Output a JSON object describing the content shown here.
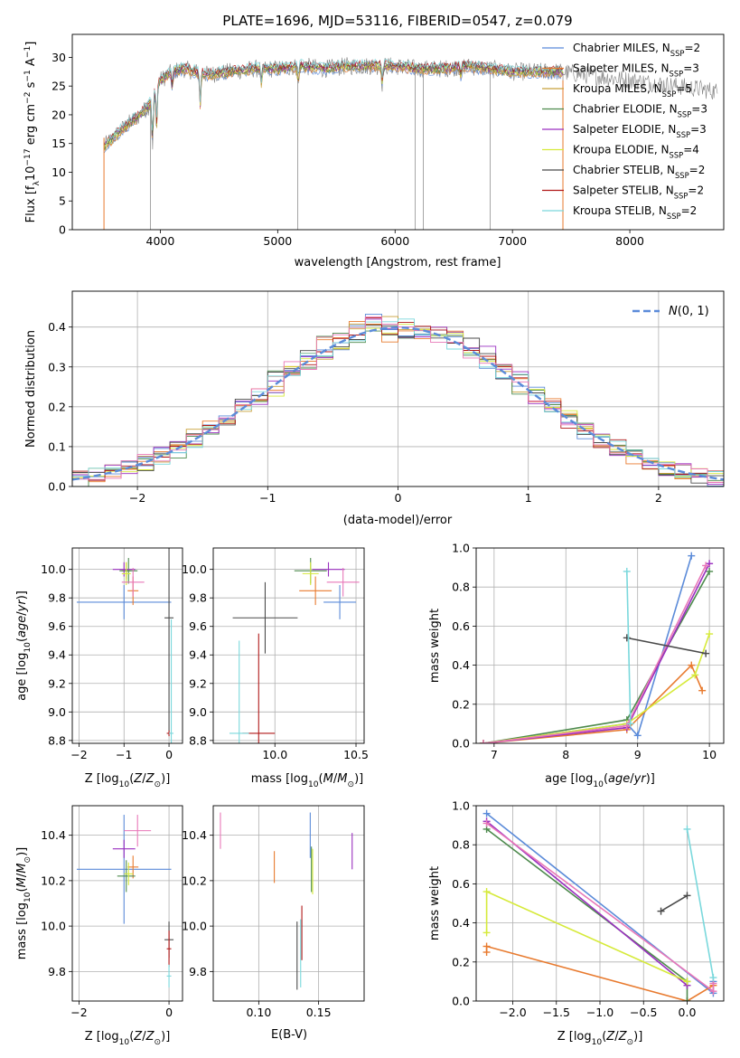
{
  "figure": {
    "title": "PLATE=1696, MJD=53116, FIBERID=0547, z=0.079"
  },
  "series_colors": {
    "Chabrier MILES": "#5b8bd9",
    "Salpeter MILES": "#e87a2e",
    "Kroupa MILES": "#c8a03a",
    "Chabrier ELODIE": "#4d8a4d",
    "Salpeter ELODIE": "#9a2fc0",
    "Kroupa ELODIE": "#d6ea3a",
    "Chabrier STELIB": "#4a4a4a",
    "Salpeter STELIB": "#b01818",
    "Kroupa STELIB": "#7ad8dc",
    "data": "#808080",
    "gaussian": "#5b8bd9",
    "pink": "#e877b8"
  },
  "chart_data": [
    {
      "id": "spectrum",
      "type": "line",
      "title": "PLATE=1696, MJD=53116, FIBERID=0547, z=0.079",
      "xlabel": "wavelength [Angstrom, rest frame]",
      "ylabel": "Flux [f_λ10^-17 erg cm^-2 s^-1 A^-1]",
      "xlim": [
        3250,
        8800
      ],
      "ylim": [
        0,
        34
      ],
      "xticks": [
        4000,
        5000,
        6000,
        7000,
        8000
      ],
      "yticks": [
        0,
        5,
        10,
        15,
        20,
        25,
        30
      ],
      "grid": false,
      "legend_position": "right",
      "legend": [
        {
          "name": "Chabrier MILES",
          "sub": "2"
        },
        {
          "name": "Salpeter MILES",
          "sub": "3"
        },
        {
          "name": "Kroupa MILES",
          "sub": "5"
        },
        {
          "name": "Chabrier ELODIE",
          "sub": "3"
        },
        {
          "name": "Salpeter ELODIE",
          "sub": "3"
        },
        {
          "name": "Kroupa ELODIE",
          "sub": "4"
        },
        {
          "name": "Chabrier STELIB",
          "sub": "2"
        },
        {
          "name": "Salpeter STELIB",
          "sub": "2"
        },
        {
          "name": "Kroupa STELIB",
          "sub": "2"
        }
      ],
      "continuum": {
        "x": [
          3520,
          3600,
          3700,
          3800,
          3900,
          4000,
          4100,
          4200,
          4300,
          4400,
          4600,
          4800,
          5000,
          5200,
          5400,
          5600,
          5800,
          6000,
          6200,
          6400,
          6600,
          6800,
          7000,
          7200,
          7400,
          7600,
          7800,
          8000,
          8200,
          8400,
          8600,
          8750
        ],
        "y": [
          14.5,
          16,
          18,
          19.5,
          21.5,
          26,
          27.5,
          28,
          27.5,
          27,
          27.5,
          28,
          28,
          28.5,
          28,
          28.5,
          28.5,
          28.5,
          28,
          28,
          28.5,
          28,
          27.5,
          27.5,
          27.5,
          27,
          26.5,
          26,
          25.5,
          25,
          24.5,
          24
        ]
      },
      "model_range": [
        3520,
        7430
      ]
    },
    {
      "id": "residuals",
      "type": "bar",
      "xlabel": "(data-model)/error",
      "ylabel": "Normed distribution",
      "xlim": [
        -2.5,
        2.5
      ],
      "ylim": [
        0,
        0.49
      ],
      "xticks": [
        -2,
        -1,
        0,
        1,
        2
      ],
      "yticks": [
        0.0,
        0.1,
        0.2,
        0.3,
        0.4
      ],
      "grid": true,
      "legend": [
        {
          "name": "N(0,1)"
        }
      ],
      "legend_position": "top-right"
    },
    {
      "id": "age-vs-z",
      "type": "scatter",
      "xlabel": "Z [log10(Z/Z⊙)]",
      "ylabel": "age [log10(age/yr)]",
      "xlim": [
        -2.15,
        0.3
      ],
      "ylim": [
        8.78,
        10.15
      ],
      "xticks": [
        -2,
        -1,
        0
      ],
      "yticks": [
        8.8,
        9.0,
        9.2,
        9.4,
        9.6,
        9.8,
        10.0
      ],
      "grid": true,
      "points": [
        {
          "series": "Chabrier MILES",
          "x": -1.0,
          "xerr": 1.05,
          "y": 9.77,
          "yerr": 0.12
        },
        {
          "series": "Salpeter MILES",
          "x": -0.8,
          "xerr": 0.12,
          "y": 9.85,
          "yerr": 0.1
        },
        {
          "series": "Kroupa MILES",
          "x": -0.95,
          "xerr": 0.1,
          "y": 9.99,
          "yerr": 0.06
        },
        {
          "series": "Chabrier ELODIE",
          "x": -0.9,
          "xerr": 0.2,
          "y": 9.99,
          "yerr": 0.09
        },
        {
          "series": "Salpeter ELODIE",
          "x": -1.0,
          "xerr": 0.25,
          "y": 10.0,
          "yerr": 0.05
        },
        {
          "series": "Kroupa ELODIE",
          "x": -0.95,
          "xerr": 0.1,
          "y": 9.97,
          "yerr": 0.08
        },
        {
          "series": "pink",
          "x": -0.8,
          "xerr": 0.25,
          "y": 9.91,
          "yerr": 0.1
        },
        {
          "series": "Chabrier STELIB",
          "x": 0.0,
          "xerr": 0.1,
          "y": 9.66,
          "yerr": 0.8
        },
        {
          "series": "Salpeter STELIB",
          "x": 0.0,
          "xerr": 0.05,
          "y": 8.85,
          "yerr": 0.02
        },
        {
          "series": "Kroupa STELIB",
          "x": 0.05,
          "xerr": 0.05,
          "y": 8.85,
          "yerr": 0.8
        }
      ]
    },
    {
      "id": "age-vs-mass",
      "type": "scatter",
      "xlabel": "mass [log10(M/M⊙)]",
      "ylabel": "",
      "xlim": [
        9.62,
        10.55
      ],
      "ylim": [
        8.78,
        10.15
      ],
      "xticks": [
        10.0,
        10.5
      ],
      "yticks": [
        8.8,
        9.0,
        9.2,
        9.4,
        9.6,
        9.8,
        10.0
      ],
      "grid": true,
      "points": [
        {
          "series": "Chabrier MILES",
          "x": 10.4,
          "xerr": 0.1,
          "y": 9.77,
          "yerr": 0.12
        },
        {
          "series": "Salpeter MILES",
          "x": 10.25,
          "xerr": 0.1,
          "y": 9.85,
          "yerr": 0.1
        },
        {
          "series": "Chabrier ELODIE",
          "x": 10.22,
          "xerr": 0.1,
          "y": 9.99,
          "yerr": 0.09
        },
        {
          "series": "Salpeter ELODIE",
          "x": 10.33,
          "xerr": 0.1,
          "y": 10.0,
          "yerr": 0.05
        },
        {
          "series": "Kroupa ELODIE",
          "x": 10.22,
          "xerr": 0.05,
          "y": 9.97,
          "yerr": 0.08
        },
        {
          "series": "pink",
          "x": 10.42,
          "xerr": 0.1,
          "y": 9.91,
          "yerr": 0.1
        },
        {
          "series": "Chabrier STELIB",
          "x": 9.94,
          "xerr": 0.2,
          "y": 9.66,
          "yerr": 0.25
        },
        {
          "series": "Salpeter STELIB",
          "x": 9.9,
          "xerr": 0.1,
          "y": 8.85,
          "yerr": 0.7
        },
        {
          "series": "Kroupa STELIB",
          "x": 9.78,
          "xerr": 0.06,
          "y": 8.85,
          "yerr": 0.65
        }
      ]
    },
    {
      "id": "mass-weight-vs-age",
      "type": "line",
      "xlabel": "age [log10(age/yr)]",
      "ylabel": "mass weight",
      "xlim": [
        6.75,
        10.2
      ],
      "ylim": [
        0,
        1.0
      ],
      "xticks": [
        7,
        8,
        9,
        10
      ],
      "yticks": [
        0.0,
        0.2,
        0.4,
        0.6,
        0.8,
        1.0
      ],
      "grid": true,
      "series": [
        {
          "name": "Chabrier MILES",
          "x": [
            6.85,
            8.85,
            9.0,
            9.75
          ],
          "y": [
            0.0,
            0.1,
            0.04,
            0.96
          ]
        },
        {
          "name": "Salpeter MILES",
          "x": [
            6.85,
            8.85,
            9.75,
            9.9
          ],
          "y": [
            0.0,
            0.07,
            0.4,
            0.27
          ]
        },
        {
          "name": "Chabrier ELODIE",
          "x": [
            6.85,
            8.85,
            10.0
          ],
          "y": [
            0.0,
            0.12,
            0.88
          ]
        },
        {
          "name": "Salpeter ELODIE",
          "x": [
            6.85,
            8.85,
            10.0
          ],
          "y": [
            0.0,
            0.08,
            0.92
          ]
        },
        {
          "name": "Kroupa ELODIE",
          "x": [
            6.85,
            8.85,
            9.8,
            10.0
          ],
          "y": [
            0.0,
            0.1,
            0.35,
            0.56
          ]
        },
        {
          "name": "pink",
          "x": [
            6.85,
            8.85,
            9.95
          ],
          "y": [
            0.0,
            0.09,
            0.91
          ]
        },
        {
          "name": "Chabrier STELIB",
          "x": [
            8.85,
            9.95
          ],
          "y": [
            0.54,
            0.46
          ]
        },
        {
          "name": "Kroupa STELIB",
          "x": [
            8.85,
            8.9
          ],
          "y": [
            0.88,
            0.1
          ]
        }
      ]
    },
    {
      "id": "mass-vs-z",
      "type": "scatter",
      "xlabel": "Z [log10(Z/Z⊙)]",
      "ylabel": "mass [log10(M/M⊙)]",
      "xlim": [
        -2.15,
        0.3
      ],
      "ylim": [
        9.67,
        10.53
      ],
      "xticks": [
        -2,
        0
      ],
      "yticks": [
        9.8,
        10.0,
        10.2,
        10.4
      ],
      "grid": true,
      "points": [
        {
          "series": "Chabrier MILES",
          "x": -1.0,
          "xerr": 1.05,
          "y": 10.25,
          "yerr": 0.24
        },
        {
          "series": "Salpeter MILES",
          "x": -0.8,
          "xerr": 0.12,
          "y": 10.26,
          "yerr": 0.05
        },
        {
          "series": "Chabrier ELODIE",
          "x": -0.95,
          "xerr": 0.2,
          "y": 10.22,
          "yerr": 0.07
        },
        {
          "series": "Salpeter ELODIE",
          "x": -1.0,
          "xerr": 0.25,
          "y": 10.34,
          "yerr": 0.04
        },
        {
          "series": "Kroupa ELODIE",
          "x": -0.9,
          "xerr": 0.1,
          "y": 10.23,
          "yerr": 0.05
        },
        {
          "series": "pink",
          "x": -0.7,
          "xerr": 0.3,
          "y": 10.42,
          "yerr": 0.07
        },
        {
          "series": "Chabrier STELIB",
          "x": 0.0,
          "xerr": 0.1,
          "y": 9.94,
          "yerr": 0.08
        },
        {
          "series": "Salpeter STELIB",
          "x": 0.0,
          "xerr": 0.05,
          "y": 9.9,
          "yerr": 0.08
        },
        {
          "series": "Kroupa STELIB",
          "x": 0.0,
          "xerr": 0.05,
          "y": 9.78,
          "yerr": 0.05
        }
      ]
    },
    {
      "id": "mass-vs-ebv",
      "type": "scatter",
      "xlabel": "E(B-V)",
      "ylabel": "",
      "xlim": [
        0.062,
        0.188
      ],
      "ylim": [
        9.67,
        10.53
      ],
      "xticks": [
        0.1,
        0.15
      ],
      "yticks": [
        9.8,
        10.0,
        10.2,
        10.4
      ],
      "grid": true,
      "points": [
        {
          "series": "pink",
          "x": 0.068,
          "y": 10.42,
          "yerr": 0.08
        },
        {
          "series": "Salpeter MILES",
          "x": 0.113,
          "y": 10.26,
          "yerr": 0.07
        },
        {
          "series": "Chabrier MILES",
          "x": 0.143,
          "y": 10.4,
          "yerr": 0.1
        },
        {
          "series": "Chabrier ELODIE",
          "x": 0.144,
          "y": 10.25,
          "yerr": 0.1
        },
        {
          "series": "Kroupa ELODIE",
          "x": 0.145,
          "y": 10.24,
          "yerr": 0.1
        },
        {
          "series": "Salpeter ELODIE",
          "x": 0.178,
          "y": 10.33,
          "yerr": 0.08
        },
        {
          "series": "Chabrier STELIB",
          "x": 0.132,
          "y": 9.87,
          "yerr": 0.15
        },
        {
          "series": "Salpeter STELIB",
          "x": 0.136,
          "y": 9.97,
          "yerr": 0.12
        },
        {
          "series": "Kroupa STELIB",
          "x": 0.135,
          "y": 9.88,
          "yerr": 0.15
        }
      ]
    },
    {
      "id": "mass-weight-vs-z",
      "type": "line",
      "xlabel": "Z [log10(Z/Z⊙)]",
      "ylabel": "mass weight",
      "xlim": [
        -2.42,
        0.42
      ],
      "ylim": [
        0,
        1.0
      ],
      "xticks": [
        -2.0,
        -1.5,
        -1.0,
        -0.5,
        0.0
      ],
      "yticks": [
        0.0,
        0.2,
        0.4,
        0.6,
        0.8,
        1.0
      ],
      "grid": true,
      "series": [
        {
          "name": "Chabrier MILES",
          "x": [
            -2.3,
            0.3,
            0.3
          ],
          "y": [
            0.96,
            0.04,
            0.1
          ]
        },
        {
          "name": "Salpeter MILES",
          "x": [
            -2.3,
            -2.3,
            0.0,
            0.3
          ],
          "y": [
            0.25,
            0.28,
            0.0,
            0.08
          ]
        },
        {
          "name": "Chabrier ELODIE",
          "x": [
            -2.3,
            0.0,
            0.0
          ],
          "y": [
            0.88,
            0.1,
            0.0
          ]
        },
        {
          "name": "Salpeter ELODIE",
          "x": [
            -2.3,
            0.0
          ],
          "y": [
            0.92,
            0.08
          ]
        },
        {
          "name": "Kroupa ELODIE",
          "x": [
            -2.3,
            -2.3,
            0.0
          ],
          "y": [
            0.35,
            0.56,
            0.1
          ]
        },
        {
          "name": "pink",
          "x": [
            -2.3,
            0.3,
            0.3
          ],
          "y": [
            0.91,
            0.05,
            0.09
          ]
        },
        {
          "name": "Chabrier STELIB",
          "x": [
            -0.3,
            0.0
          ],
          "y": [
            0.46,
            0.54
          ]
        },
        {
          "name": "Kroupa STELIB",
          "x": [
            0.0,
            0.3
          ],
          "y": [
            0.88,
            0.12
          ]
        }
      ]
    }
  ]
}
